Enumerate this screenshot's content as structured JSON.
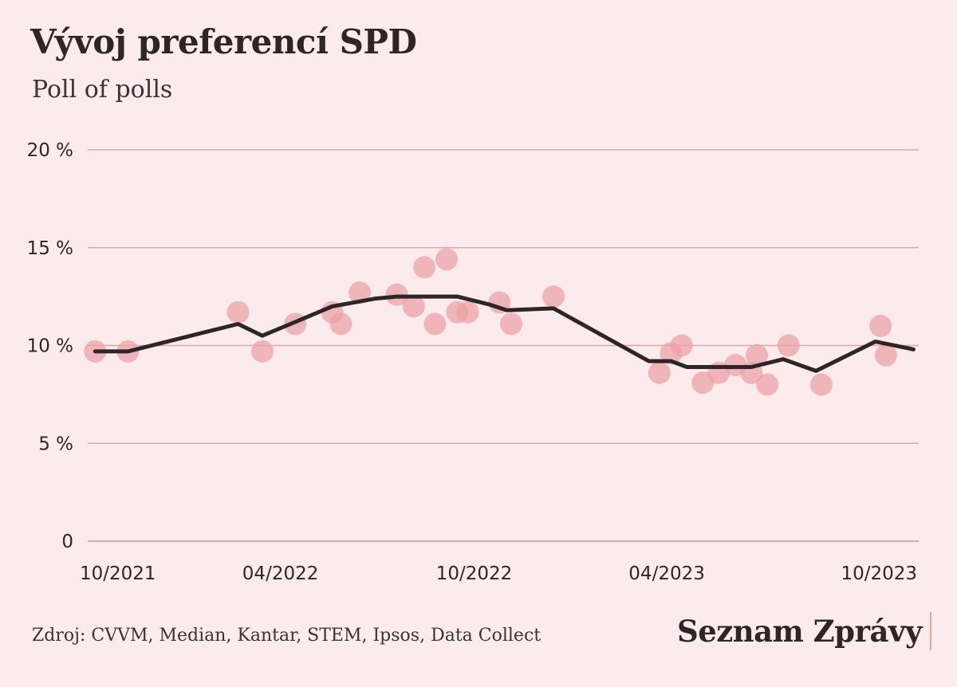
{
  "title": "Vývoj preferencí SPD",
  "subtitle": "Poll of polls",
  "source": "Zdroj: CVVM, Median, Kantar, STEM, Ipsos, Data Collect",
  "brand": "Seznam Zprávy",
  "colors": {
    "background": "#fcebec",
    "line": "#2e2626",
    "points": "#eba0a5",
    "grid": "#d4aaab"
  },
  "chart_data": {
    "type": "line",
    "ylim": [
      0,
      20
    ],
    "xlim": [
      "2021-10-01",
      "2023-11-25"
    ],
    "y_ticks": [
      {
        "value": 0,
        "label": "0"
      },
      {
        "value": 5,
        "label": "5 %"
      },
      {
        "value": 10,
        "label": "10 %"
      },
      {
        "value": 15,
        "label": "15 %"
      },
      {
        "value": 20,
        "label": "20 %"
      }
    ],
    "x_ticks": [
      {
        "value": "2021-10-01",
        "label": "10/2021"
      },
      {
        "value": "2022-04-01",
        "label": "04/2022"
      },
      {
        "value": "2022-10-01",
        "label": "10/2022"
      },
      {
        "value": "2023-04-01",
        "label": "04/2023"
      },
      {
        "value": "2023-10-01",
        "label": "10/2023"
      }
    ],
    "grid": true,
    "series": [
      {
        "kind": "line",
        "x": [
          "2021-10-08",
          "2021-11-08",
          "2022-02-20",
          "2022-03-15",
          "2022-04-15",
          "2022-05-20",
          "2022-06-30",
          "2022-07-20",
          "2022-08-20",
          "2022-09-15",
          "2022-10-15",
          "2022-11-01",
          "2022-12-15",
          "2023-03-15",
          "2023-04-05",
          "2023-04-20",
          "2023-05-20",
          "2023-06-20",
          "2023-07-20",
          "2023-08-20",
          "2023-10-15",
          "2023-11-20"
        ],
        "y": [
          9.7,
          9.7,
          11.1,
          10.5,
          11.2,
          12.0,
          12.4,
          12.5,
          12.5,
          12.5,
          12.1,
          11.8,
          11.9,
          9.2,
          9.2,
          8.9,
          8.9,
          8.9,
          9.3,
          8.7,
          10.2,
          9.8
        ]
      },
      {
        "kind": "scatter",
        "x": [
          "2021-10-08",
          "2021-11-08",
          "2022-02-20",
          "2022-03-15",
          "2022-04-15",
          "2022-05-20",
          "2022-05-28",
          "2022-06-15",
          "2022-07-20",
          "2022-08-05",
          "2022-08-15",
          "2022-08-25",
          "2022-09-05",
          "2022-09-15",
          "2022-09-25",
          "2022-10-25",
          "2022-11-05",
          "2022-12-15",
          "2023-03-25",
          "2023-04-05",
          "2023-04-15",
          "2023-05-05",
          "2023-05-20",
          "2023-06-05",
          "2023-06-20",
          "2023-06-25",
          "2023-07-05",
          "2023-07-25",
          "2023-08-25",
          "2023-10-20",
          "2023-10-25"
        ],
        "y": [
          9.7,
          9.7,
          11.7,
          9.7,
          11.1,
          11.7,
          11.1,
          12.7,
          12.6,
          12.0,
          14.0,
          11.1,
          14.4,
          11.7,
          11.7,
          12.2,
          11.1,
          12.5,
          8.6,
          9.6,
          10.0,
          8.1,
          8.6,
          9.0,
          8.6,
          9.5,
          8.0,
          10.0,
          8.0,
          11.0,
          9.5
        ]
      }
    ]
  }
}
